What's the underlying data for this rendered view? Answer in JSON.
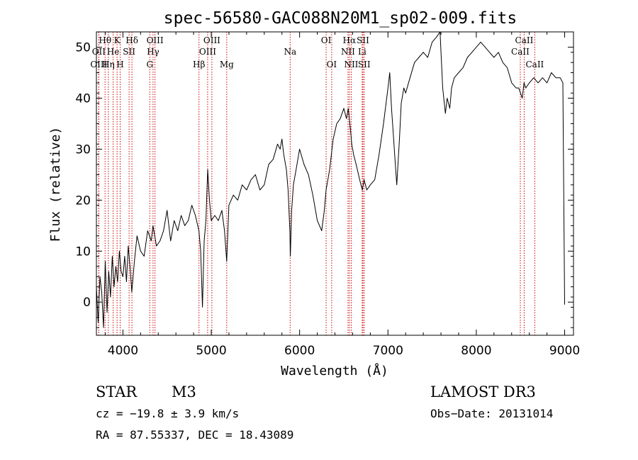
{
  "chart_data": {
    "type": "line",
    "title": "spec-56580-GAC088N20M1_sp02-009.fits",
    "xlabel": "Wavelength (Å)",
    "ylabel": "Flux (relative)",
    "xlim": [
      3700,
      9100
    ],
    "ylim": [
      -6.5,
      53
    ],
    "x_ticks": [
      4000,
      5000,
      6000,
      7000,
      8000,
      9000
    ],
    "y_ticks": [
      0,
      10,
      20,
      30,
      40,
      50
    ],
    "series": [
      {
        "name": "flux",
        "x": [
          3700,
          3720,
          3740,
          3760,
          3780,
          3800,
          3820,
          3840,
          3860,
          3880,
          3900,
          3920,
          3940,
          3960,
          3980,
          4000,
          4020,
          4040,
          4060,
          4080,
          4100,
          4130,
          4160,
          4200,
          4240,
          4280,
          4320,
          4340,
          4380,
          4420,
          4460,
          4500,
          4540,
          4580,
          4620,
          4660,
          4700,
          4740,
          4780,
          4820,
          4860,
          4880,
          4900,
          4920,
          4940,
          4960,
          4980,
          5000,
          5040,
          5080,
          5120,
          5150,
          5175,
          5200,
          5250,
          5300,
          5350,
          5400,
          5450,
          5500,
          5550,
          5600,
          5650,
          5700,
          5750,
          5780,
          5800,
          5820,
          5850,
          5870,
          5890,
          5895,
          5900,
          5910,
          5930,
          5960,
          6000,
          6050,
          6100,
          6150,
          6200,
          6250,
          6280,
          6300,
          6320,
          6340,
          6380,
          6420,
          6460,
          6500,
          6530,
          6550,
          6563,
          6575,
          6590,
          6610,
          6640,
          6680,
          6710,
          6730,
          6760,
          6800,
          6850,
          6900,
          6950,
          7000,
          7020,
          7040,
          7060,
          7080,
          7100,
          7130,
          7150,
          7180,
          7200,
          7250,
          7300,
          7350,
          7400,
          7450,
          7500,
          7550,
          7590,
          7600,
          7620,
          7650,
          7670,
          7700,
          7720,
          7750,
          7800,
          7850,
          7900,
          7950,
          8000,
          8050,
          8100,
          8150,
          8200,
          8250,
          8300,
          8350,
          8400,
          8450,
          8480,
          8500,
          8520,
          8540,
          8560,
          8600,
          8650,
          8700,
          8750,
          8800,
          8850,
          8900,
          8950,
          8980,
          9000
        ],
        "y": [
          3,
          -4,
          5,
          2,
          -5,
          8,
          -2,
          6,
          1,
          9,
          3,
          7,
          4,
          10,
          6,
          5,
          9,
          4,
          11,
          7,
          2,
          8,
          13,
          10,
          9,
          14,
          12,
          15,
          11,
          12,
          14,
          18,
          12,
          16,
          14,
          17,
          15,
          16,
          19,
          17,
          14,
          10,
          -1,
          12,
          16,
          26,
          20,
          16,
          17,
          16,
          18,
          14,
          8,
          19,
          21,
          20,
          23,
          22,
          24,
          25,
          22,
          23,
          27,
          28,
          31,
          30,
          32,
          29,
          26,
          22,
          14,
          9,
          12,
          18,
          23,
          26,
          30,
          27,
          25,
          21,
          16,
          14,
          18,
          22,
          24,
          26,
          32,
          35,
          36,
          38,
          36,
          38,
          36,
          34,
          31,
          29,
          27,
          24,
          22,
          24,
          22,
          23,
          24,
          29,
          35,
          42,
          45,
          38,
          33,
          28,
          23,
          32,
          39,
          42,
          41,
          44,
          47,
          48,
          49,
          48,
          51,
          52,
          53,
          49,
          42,
          37,
          40,
          38,
          42,
          44,
          45,
          46,
          48,
          49,
          50,
          51,
          50,
          49,
          48,
          49,
          47,
          46,
          43,
          42,
          42,
          41,
          40,
          43,
          42,
          43,
          44,
          43,
          44,
          43,
          45,
          44,
          44,
          43,
          -0.5
        ]
      }
    ],
    "spectral_lines": [
      {
        "label": "Hθ",
        "wl": 3798,
        "row": 1
      },
      {
        "label": "OII",
        "wl": 3727,
        "row": 2
      },
      {
        "label": "OIII",
        "wl": 3727,
        "row": 3
      },
      {
        "label": "K",
        "wl": 3934,
        "row": 1
      },
      {
        "label": "He",
        "wl": 3889,
        "row": 2
      },
      {
        "label": "Hη",
        "wl": 3835,
        "row": 3
      },
      {
        "label": "SII",
        "wl": 4070,
        "row": 2
      },
      {
        "label": "H",
        "wl": 3969,
        "row": 3
      },
      {
        "label": "Hδ",
        "wl": 4102,
        "row": 1
      },
      {
        "label": "OIII",
        "wl": 4363,
        "row": 1
      },
      {
        "label": "Hγ",
        "wl": 4341,
        "row": 2
      },
      {
        "label": "G",
        "wl": 4304,
        "row": 3
      },
      {
        "label": "Hβ",
        "wl": 4861,
        "row": 3
      },
      {
        "label": "OIII",
        "wl": 5007,
        "row": 1
      },
      {
        "label": "OIII",
        "wl": 4959,
        "row": 2
      },
      {
        "label": "Mg",
        "wl": 5175,
        "row": 3
      },
      {
        "label": "Na",
        "wl": 5893,
        "row": 2
      },
      {
        "label": "OI",
        "wl": 6300,
        "row": 1
      },
      {
        "label": "OI",
        "wl": 6363,
        "row": 3
      },
      {
        "label": "Hα",
        "wl": 6563,
        "row": 1
      },
      {
        "label": "NII",
        "wl": 6548,
        "row": 2
      },
      {
        "label": "NII",
        "wl": 6584,
        "row": 3
      },
      {
        "label": "SII",
        "wl": 6717,
        "row": 1
      },
      {
        "label": "Li",
        "wl": 6708,
        "row": 2
      },
      {
        "label": "SII",
        "wl": 6731,
        "row": 3
      },
      {
        "label": "CaII",
        "wl": 8542,
        "row": 1
      },
      {
        "label": "CaII",
        "wl": 8498,
        "row": 2
      },
      {
        "label": "CaII",
        "wl": 8662,
        "row": 3
      }
    ]
  },
  "footer": {
    "object_class": "STAR",
    "subclass": "M3",
    "survey": "LAMOST DR3",
    "cz": "cz = −19.8 ± 3.9 km/s",
    "obs_date": "Obs−Date: 20131014",
    "coords": "RA =  87.55337, DEC =  18.43089"
  },
  "colors": {
    "line": "#000000",
    "marker": "#cc0000"
  }
}
